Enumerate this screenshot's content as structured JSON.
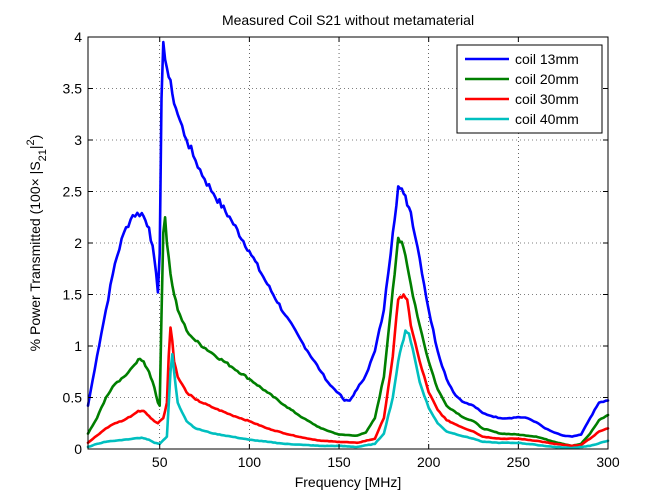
{
  "chart_data": {
    "type": "line",
    "title": "Measured Coil S21 without metamaterial",
    "xlabel": "Frequency [MHz]",
    "ylabel": "% Power Transmitted (100× |S21|²)",
    "ylabel_parts": {
      "pre": "% Power Transmitted (100× |S",
      "sub": "21",
      "mid": "|",
      "sup": "2",
      "post": ")"
    },
    "xlim": [
      10,
      300
    ],
    "ylim": [
      0,
      4
    ],
    "x_ticks": [
      50,
      100,
      150,
      200,
      250,
      300
    ],
    "x_tick_labels": [
      "50",
      "100",
      "150",
      "200",
      "250",
      "300"
    ],
    "y_ticks": [
      0,
      0.5,
      1,
      1.5,
      2,
      2.5,
      3,
      3.5,
      4
    ],
    "y_tick_labels": [
      "0",
      "0.5",
      "1",
      "1.5",
      "2",
      "2.5",
      "3",
      "3.5",
      "4"
    ],
    "grid": true,
    "legend_position": "top-right",
    "series": [
      {
        "name": "coil 13mm",
        "color": "#0000ff",
        "points": [
          [
            10,
            0.42
          ],
          [
            15,
            0.9
          ],
          [
            20,
            1.35
          ],
          [
            25,
            1.8
          ],
          [
            30,
            2.1
          ],
          [
            35,
            2.27
          ],
          [
            40,
            2.29
          ],
          [
            44,
            2.15
          ],
          [
            47,
            1.85
          ],
          [
            49,
            1.52
          ],
          [
            50,
            1.9
          ],
          [
            51,
            3.4
          ],
          [
            52,
            3.95
          ],
          [
            54,
            3.7
          ],
          [
            57,
            3.45
          ],
          [
            60,
            3.25
          ],
          [
            65,
            3.0
          ],
          [
            70,
            2.8
          ],
          [
            75,
            2.62
          ],
          [
            80,
            2.48
          ],
          [
            90,
            2.22
          ],
          [
            100,
            1.92
          ],
          [
            110,
            1.6
          ],
          [
            120,
            1.3
          ],
          [
            130,
            1.02
          ],
          [
            140,
            0.75
          ],
          [
            145,
            0.62
          ],
          [
            150,
            0.54
          ],
          [
            153,
            0.47
          ],
          [
            156,
            0.47
          ],
          [
            160,
            0.58
          ],
          [
            165,
            0.72
          ],
          [
            170,
            0.95
          ],
          [
            175,
            1.35
          ],
          [
            180,
            2.1
          ],
          [
            183,
            2.55
          ],
          [
            186,
            2.48
          ],
          [
            190,
            2.3
          ],
          [
            195,
            1.85
          ],
          [
            200,
            1.35
          ],
          [
            205,
            0.95
          ],
          [
            210,
            0.68
          ],
          [
            215,
            0.52
          ],
          [
            220,
            0.45
          ],
          [
            225,
            0.42
          ],
          [
            230,
            0.35
          ],
          [
            235,
            0.32
          ],
          [
            240,
            0.3
          ],
          [
            245,
            0.3
          ],
          [
            250,
            0.31
          ],
          [
            255,
            0.3
          ],
          [
            260,
            0.26
          ],
          [
            265,
            0.2
          ],
          [
            270,
            0.16
          ],
          [
            275,
            0.13
          ],
          [
            280,
            0.12
          ],
          [
            285,
            0.14
          ],
          [
            290,
            0.3
          ],
          [
            295,
            0.45
          ],
          [
            300,
            0.47
          ]
        ]
      },
      {
        "name": "coil 20mm",
        "color": "#007f00",
        "points": [
          [
            10,
            0.15
          ],
          [
            15,
            0.3
          ],
          [
            20,
            0.5
          ],
          [
            25,
            0.63
          ],
          [
            30,
            0.7
          ],
          [
            35,
            0.8
          ],
          [
            38,
            0.87
          ],
          [
            41,
            0.85
          ],
          [
            44,
            0.75
          ],
          [
            47,
            0.6
          ],
          [
            49,
            0.45
          ],
          [
            50,
            0.42
          ],
          [
            51,
            1.3
          ],
          [
            52,
            2.1
          ],
          [
            53,
            2.25
          ],
          [
            54,
            2.0
          ],
          [
            56,
            1.7
          ],
          [
            58,
            1.5
          ],
          [
            60,
            1.35
          ],
          [
            65,
            1.15
          ],
          [
            70,
            1.05
          ],
          [
            80,
            0.92
          ],
          [
            90,
            0.8
          ],
          [
            100,
            0.68
          ],
          [
            110,
            0.55
          ],
          [
            120,
            0.42
          ],
          [
            130,
            0.3
          ],
          [
            140,
            0.2
          ],
          [
            150,
            0.14
          ],
          [
            160,
            0.13
          ],
          [
            165,
            0.16
          ],
          [
            170,
            0.3
          ],
          [
            175,
            0.7
          ],
          [
            180,
            1.55
          ],
          [
            183,
            2.05
          ],
          [
            186,
            1.95
          ],
          [
            190,
            1.6
          ],
          [
            195,
            1.2
          ],
          [
            200,
            0.85
          ],
          [
            205,
            0.58
          ],
          [
            210,
            0.42
          ],
          [
            220,
            0.3
          ],
          [
            225,
            0.27
          ],
          [
            230,
            0.2
          ],
          [
            240,
            0.15
          ],
          [
            250,
            0.14
          ],
          [
            260,
            0.12
          ],
          [
            270,
            0.07
          ],
          [
            280,
            0.03
          ],
          [
            285,
            0.05
          ],
          [
            290,
            0.15
          ],
          [
            295,
            0.28
          ],
          [
            300,
            0.33
          ]
        ]
      },
      {
        "name": "coil 30mm",
        "color": "#ff0000",
        "points": [
          [
            10,
            0.06
          ],
          [
            15,
            0.13
          ],
          [
            20,
            0.2
          ],
          [
            25,
            0.25
          ],
          [
            30,
            0.28
          ],
          [
            35,
            0.33
          ],
          [
            38,
            0.37
          ],
          [
            41,
            0.37
          ],
          [
            44,
            0.32
          ],
          [
            47,
            0.27
          ],
          [
            49,
            0.25
          ],
          [
            50,
            0.27
          ],
          [
            52,
            0.3
          ],
          [
            54,
            0.45
          ],
          [
            55,
            0.9
          ],
          [
            56,
            1.18
          ],
          [
            57,
            1.05
          ],
          [
            58,
            0.85
          ],
          [
            60,
            0.7
          ],
          [
            65,
            0.55
          ],
          [
            70,
            0.48
          ],
          [
            80,
            0.4
          ],
          [
            90,
            0.33
          ],
          [
            100,
            0.27
          ],
          [
            110,
            0.2
          ],
          [
            120,
            0.15
          ],
          [
            130,
            0.11
          ],
          [
            140,
            0.08
          ],
          [
            150,
            0.07
          ],
          [
            160,
            0.06
          ],
          [
            170,
            0.1
          ],
          [
            175,
            0.3
          ],
          [
            180,
            0.9
          ],
          [
            183,
            1.45
          ],
          [
            186,
            1.5
          ],
          [
            188,
            1.45
          ],
          [
            190,
            1.2
          ],
          [
            195,
            0.85
          ],
          [
            200,
            0.55
          ],
          [
            205,
            0.38
          ],
          [
            210,
            0.28
          ],
          [
            220,
            0.2
          ],
          [
            225,
            0.17
          ],
          [
            230,
            0.12
          ],
          [
            240,
            0.1
          ],
          [
            250,
            0.1
          ],
          [
            260,
            0.08
          ],
          [
            270,
            0.05
          ],
          [
            280,
            0.03
          ],
          [
            285,
            0.04
          ],
          [
            290,
            0.1
          ],
          [
            295,
            0.17
          ],
          [
            300,
            0.2
          ]
        ]
      },
      {
        "name": "coil 40mm",
        "color": "#00bfbf",
        "points": [
          [
            10,
            0.02
          ],
          [
            15,
            0.05
          ],
          [
            20,
            0.07
          ],
          [
            25,
            0.08
          ],
          [
            30,
            0.09
          ],
          [
            35,
            0.1
          ],
          [
            40,
            0.11
          ],
          [
            44,
            0.09
          ],
          [
            47,
            0.06
          ],
          [
            50,
            0.05
          ],
          [
            54,
            0.12
          ],
          [
            56,
            0.75
          ],
          [
            57,
            0.92
          ],
          [
            58,
            0.75
          ],
          [
            60,
            0.45
          ],
          [
            65,
            0.27
          ],
          [
            70,
            0.2
          ],
          [
            80,
            0.15
          ],
          [
            90,
            0.12
          ],
          [
            100,
            0.09
          ],
          [
            110,
            0.07
          ],
          [
            120,
            0.05
          ],
          [
            130,
            0.04
          ],
          [
            140,
            0.03
          ],
          [
            150,
            0.03
          ],
          [
            160,
            0.02
          ],
          [
            170,
            0.05
          ],
          [
            175,
            0.15
          ],
          [
            180,
            0.5
          ],
          [
            183,
            0.85
          ],
          [
            187,
            1.15
          ],
          [
            189,
            1.12
          ],
          [
            192,
            0.9
          ],
          [
            195,
            0.65
          ],
          [
            200,
            0.4
          ],
          [
            205,
            0.25
          ],
          [
            210,
            0.17
          ],
          [
            220,
            0.12
          ],
          [
            225,
            0.1
          ],
          [
            230,
            0.07
          ],
          [
            240,
            0.06
          ],
          [
            250,
            0.06
          ],
          [
            260,
            0.04
          ],
          [
            270,
            0.02
          ],
          [
            280,
            0.01
          ],
          [
            290,
            0.03
          ],
          [
            300,
            0.08
          ]
        ]
      }
    ]
  }
}
